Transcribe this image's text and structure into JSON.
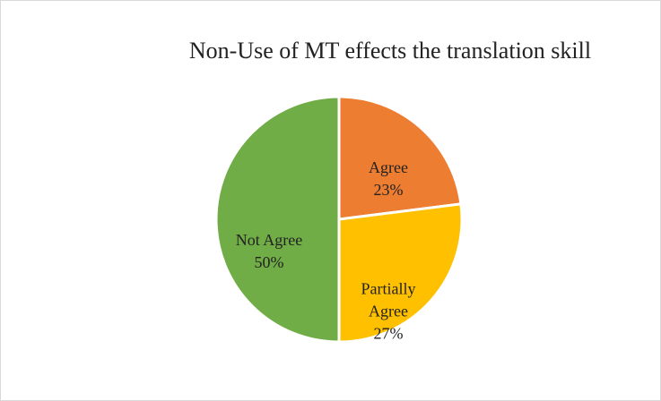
{
  "chart_data": {
    "type": "pie",
    "title": "Non-Use of MT effects the translation skill",
    "categories": [
      "Agree",
      "Partially Agree",
      "Not Agree"
    ],
    "values": [
      23,
      27,
      50
    ],
    "value_labels": [
      "23%",
      "27%",
      "50%"
    ],
    "colors": [
      "#ED7D31",
      "#FFC000",
      "#70AD47"
    ]
  }
}
